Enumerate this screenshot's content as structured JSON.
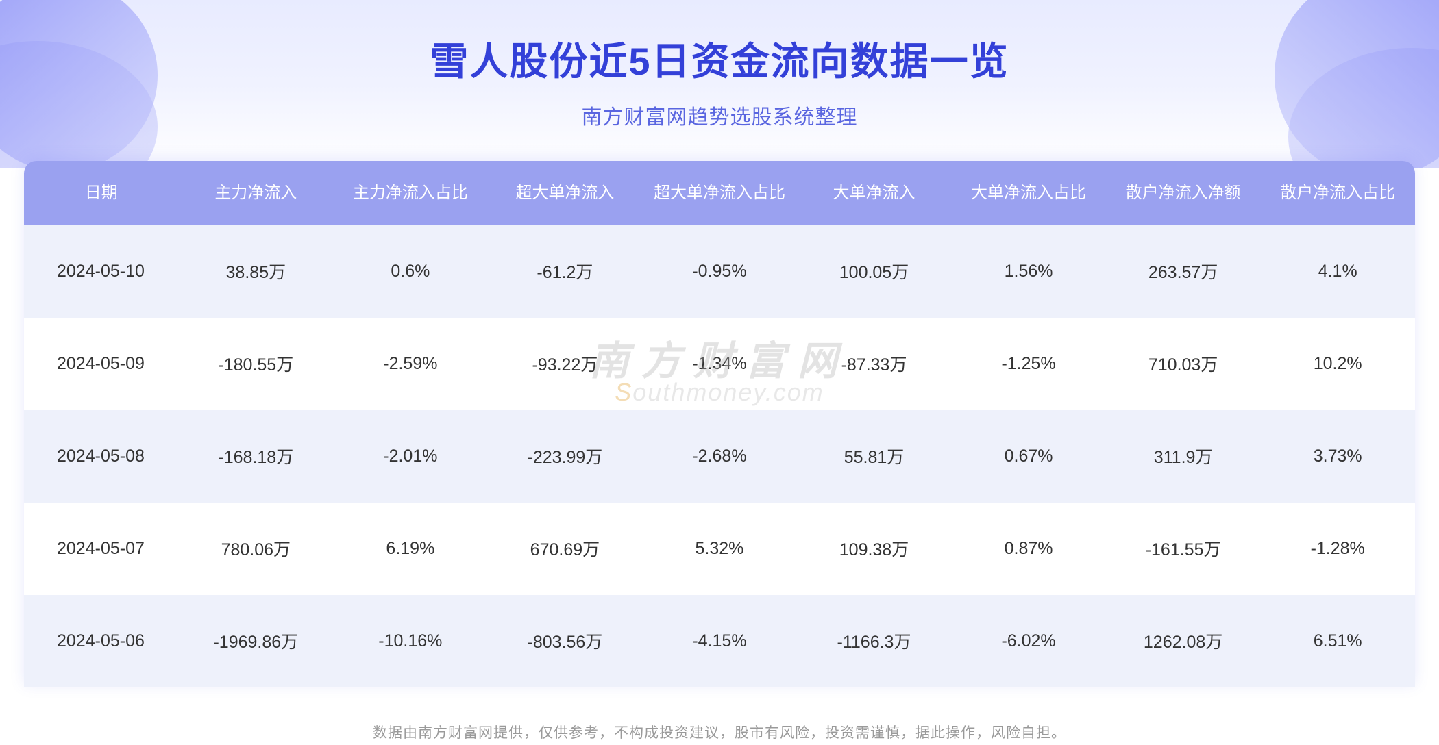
{
  "header": {
    "title": "雪人股份近5日资金流向数据一览",
    "subtitle": "南方财富网趋势选股系统整理",
    "title_color": "#3340d8",
    "subtitle_color": "#5a66e0",
    "title_fontsize": 56,
    "subtitle_fontsize": 30,
    "bg_gradient_top": "#e8ebff",
    "bg_gradient_bottom": "#ffffff",
    "accent_purple": "#7a7ff5"
  },
  "table": {
    "header_bg": "#9aa1f0",
    "header_text_color": "#ffffff",
    "row_odd_bg": "#eef1fb",
    "row_even_bg": "#ffffff",
    "cell_text_color": "#333333",
    "header_fontsize": 24,
    "cell_fontsize": 25,
    "columns": [
      "日期",
      "主力净流入",
      "主力净流入占比",
      "超大单净流入",
      "超大单净流入占比",
      "大单净流入",
      "大单净流入占比",
      "散户净流入净额",
      "散户净流入占比"
    ],
    "rows": [
      [
        "2024-05-10",
        "38.85万",
        "0.6%",
        "-61.2万",
        "-0.95%",
        "100.05万",
        "1.56%",
        "263.57万",
        "4.1%"
      ],
      [
        "2024-05-09",
        "-180.55万",
        "-2.59%",
        "-93.22万",
        "-1.34%",
        "-87.33万",
        "-1.25%",
        "710.03万",
        "10.2%"
      ],
      [
        "2024-05-08",
        "-168.18万",
        "-2.01%",
        "-223.99万",
        "-2.68%",
        "55.81万",
        "0.67%",
        "311.9万",
        "3.73%"
      ],
      [
        "2024-05-07",
        "780.06万",
        "6.19%",
        "670.69万",
        "5.32%",
        "109.38万",
        "0.87%",
        "-161.55万",
        "-1.28%"
      ],
      [
        "2024-05-06",
        "-1969.86万",
        "-10.16%",
        "-803.56万",
        "-4.15%",
        "-1166.3万",
        "-6.02%",
        "1262.08万",
        "6.51%"
      ]
    ]
  },
  "watermark": {
    "cn_text": "南方财富网",
    "en_prefix": "S",
    "en_rest": "outhmoney.com",
    "cn_color": "#b0b0b0",
    "en_color": "#c0c0c0",
    "accent_color": "#e0a030",
    "opacity": 0.35
  },
  "disclaimer": {
    "text": "数据由南方财富网提供，仅供参考，不构成投资建议，股市有风险，投资需谨慎，据此操作，风险自担。",
    "color": "#9a9a9a",
    "fontsize": 21
  }
}
